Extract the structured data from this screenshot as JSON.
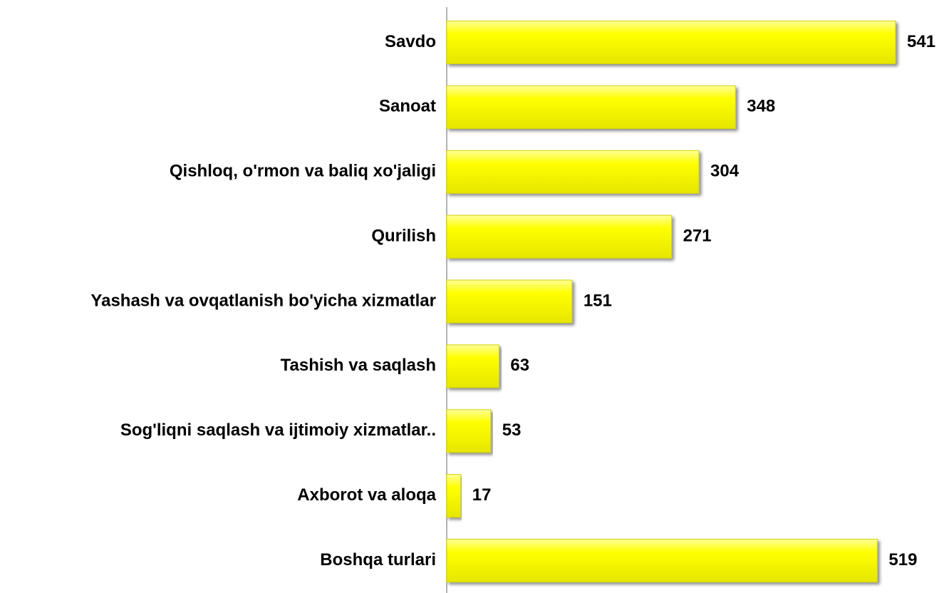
{
  "chart_data": {
    "type": "bar",
    "orientation": "horizontal",
    "categories": [
      "Savdo",
      "Sanoat",
      "Qishloq, o'rmon va baliq xo'jaligi",
      "Qurilish",
      "Yashash va ovqatlanish bo'yicha xizmatlar",
      "Tashish va saqlash",
      "Sog'liqni saqlash va ijtimoiy xizmatlar..",
      "Axborot va aloqa",
      "Boshqa turlari"
    ],
    "values": [
      541,
      348,
      304,
      271,
      151,
      63,
      53,
      17,
      519
    ],
    "color": "#ffff00"
  }
}
